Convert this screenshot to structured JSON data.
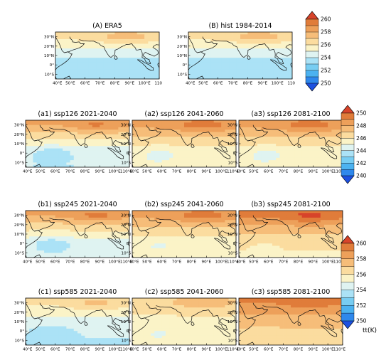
{
  "panels": [
    {
      "id": "A",
      "title": "(A) ERA5",
      "scheme": 0,
      "field": "base"
    },
    {
      "id": "B",
      "title": "(B) hist 1984-2014",
      "scheme": 0,
      "field": "base"
    },
    {
      "id": "a1",
      "title": "(a1) ssp126 2021-2040",
      "scheme": 1,
      "field": "s126a"
    },
    {
      "id": "a2",
      "title": "(a2) ssp126 2041-2060",
      "scheme": 1,
      "field": "s126b"
    },
    {
      "id": "a3",
      "title": "(a3) ssp126 2081-2100",
      "scheme": 1,
      "field": "s126c"
    },
    {
      "id": "b1",
      "title": "(b1) ssp245 2021-2040",
      "scheme": 1,
      "field": "s245a"
    },
    {
      "id": "b2",
      "title": "(b2) ssp245 2041-2060",
      "scheme": 1,
      "field": "s245b"
    },
    {
      "id": "b3",
      "title": "(b3) ssp245 2081-2100",
      "scheme": 1,
      "field": "s245c"
    },
    {
      "id": "c1",
      "title": "(c1) ssp585 2021-2040",
      "scheme": 2,
      "field": "s585a"
    },
    {
      "id": "c2",
      "title": "(c2) ssp585 2041-2060",
      "scheme": 2,
      "field": "s585b"
    },
    {
      "id": "c3",
      "title": "(c3) ssp585 2081-2100",
      "scheme": 2,
      "field": "s585c"
    }
  ],
  "lat_labels": [
    "30°N",
    "20°N",
    "10°N",
    "0°",
    "10°S"
  ],
  "lon_labels_top": [
    "40°E",
    "50°E",
    "60°E",
    "70°E",
    "80°E",
    "90°E",
    "100°E",
    "110"
  ],
  "lon_labels": [
    "40°E",
    "50°E",
    "60°E",
    "70°E",
    "80°E",
    "90°E",
    "100°E",
    "110°E"
  ],
  "colorbars": [
    {
      "id": "cb-top",
      "ticks": [
        "260",
        "258",
        "256",
        "254",
        "252",
        "250"
      ]
    },
    {
      "id": "cb-middle",
      "ticks": [
        "250",
        "248",
        "246",
        "244",
        "242",
        "240"
      ]
    },
    {
      "id": "cb-bottom",
      "ticks": [
        "260",
        "258",
        "256",
        "254",
        "252",
        "250"
      ]
    }
  ],
  "unit_label": "tt(K)",
  "colors": {
    "levels": [
      "#1c50e0",
      "#2f88ec",
      "#4cb2f0",
      "#78cdf2",
      "#abe2f6",
      "#dff3f1",
      "#fbf3c7",
      "#fbdc9f",
      "#f6bd79",
      "#eda05a",
      "#e07c3a",
      "#d7442a"
    ]
  },
  "chart_data": {
    "type": "heatmap",
    "region": {
      "lon_range": [
        40,
        110
      ],
      "lat_range": [
        -15,
        35
      ]
    },
    "variable": "tt",
    "unit": "K",
    "schemes": [
      {
        "range": [
          250,
          260
        ],
        "step": 1
      },
      {
        "range": [
          240,
          250
        ],
        "step": 1
      },
      {
        "range": [
          250,
          260
        ],
        "step": 1
      }
    ],
    "fields": {
      "base": {
        "peak": 257.6,
        "north": 256.4,
        "eq": 253.6,
        "wpool": 253.4
      },
      "s126a": {
        "peak": 249.2,
        "north": 248.0,
        "eq": 244.6,
        "wpool": 243.3
      },
      "s126b": {
        "peak": 249.6,
        "north": 248.4,
        "eq": 245.6,
        "wpool": 244.8
      },
      "s126c": {
        "peak": 249.6,
        "north": 248.4,
        "eq": 245.6,
        "wpool": 244.8
      },
      "s245a": {
        "peak": 249.3,
        "north": 248.1,
        "eq": 244.8,
        "wpool": 243.4
      },
      "s245b": {
        "peak": 249.6,
        "north": 248.4,
        "eq": 245.6,
        "wpool": 245.0
      },
      "s245c": {
        "peak": 250.3,
        "north": 249.2,
        "eq": 246.3,
        "wpool": 246.0
      },
      "s585a": {
        "peak": 257.3,
        "north": 256.2,
        "eq": 254.2,
        "wpool": 253.5
      },
      "s585b": {
        "peak": 257.8,
        "north": 256.8,
        "eq": 255.3,
        "wpool": 255.0
      },
      "s585c": {
        "peak": 259.6,
        "north": 259.0,
        "eq": 257.0,
        "wpool": 256.8
      }
    }
  }
}
